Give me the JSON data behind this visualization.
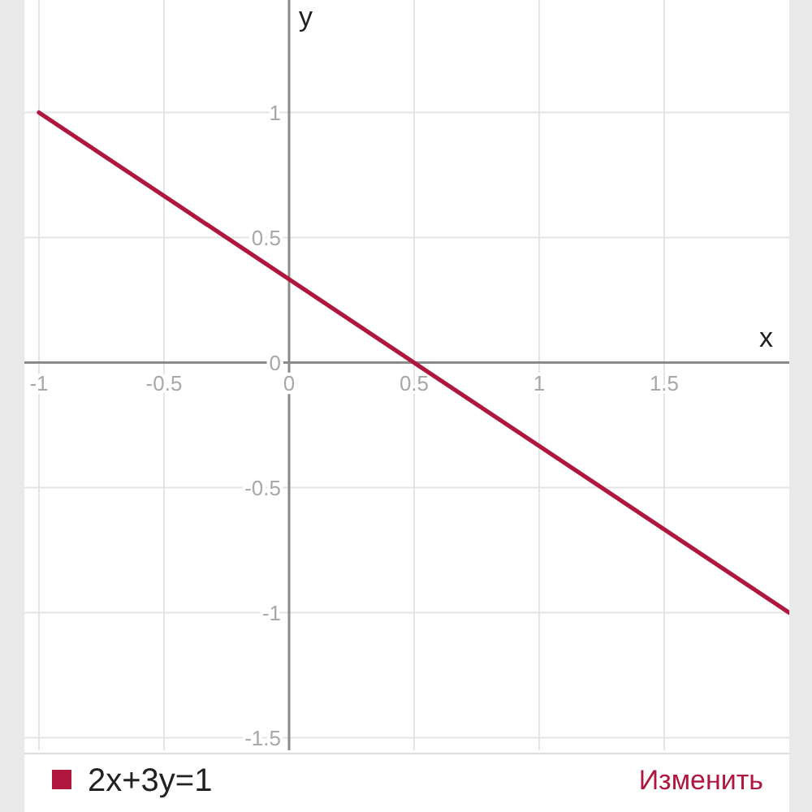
{
  "chart_data": {
    "type": "line",
    "xlabel": "x",
    "ylabel": "y",
    "x": [
      -1,
      2
    ],
    "series": [
      {
        "name": "2x+3y=1",
        "color": "#b0173f",
        "values": [
          1,
          -1
        ]
      }
    ],
    "xlim": [
      -1,
      2
    ],
    "ylim": [
      -1.55,
      1.45
    ],
    "xticks": [
      -1,
      -0.5,
      0,
      0.5,
      1,
      1.5
    ],
    "yticks": [
      -1.5,
      -1,
      -0.5,
      0,
      0.5,
      1
    ],
    "grid": true,
    "legend": "bottom",
    "annotations": [
      "Изменить"
    ]
  }
}
